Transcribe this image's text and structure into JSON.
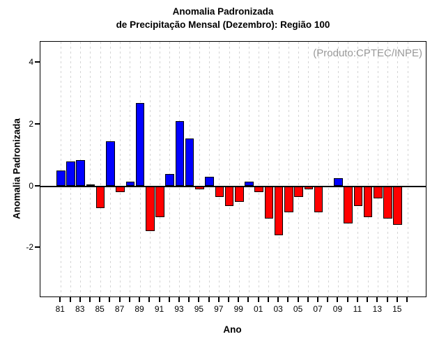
{
  "title": {
    "line1": "Anomalia Padronizada",
    "line2": "de Precipitação Mensal (Dezembro): Região 100"
  },
  "annotation": "(Produto:CPTEC/INPE)",
  "axes": {
    "x_label": "Ano",
    "y_label": "Anomalia Padronizada"
  },
  "colors": {
    "positive_bar": "#0000ff",
    "negative_bar": "#ff0000",
    "bar_border": "#000000",
    "gridline": "#d4d4d4",
    "annotation_text": "#999999",
    "axis": "#000000"
  },
  "chart_data": {
    "type": "bar",
    "title": "Anomalia Padronizada de Precipitação Mensal (Dezembro): Região 100",
    "xlabel": "Ano",
    "ylabel": "Anomalia Padronizada",
    "x": [
      1981,
      1982,
      1983,
      1984,
      1985,
      1986,
      1987,
      1988,
      1989,
      1990,
      1991,
      1992,
      1993,
      1994,
      1995,
      1996,
      1997,
      1998,
      1999,
      2000,
      2001,
      2002,
      2003,
      2004,
      2005,
      2006,
      2007,
      2008,
      2009,
      2010,
      2011,
      2012,
      2013,
      2014,
      2015
    ],
    "values": [
      0.5,
      0.8,
      0.85,
      0.05,
      -0.7,
      1.45,
      -0.2,
      0.15,
      2.7,
      -1.45,
      -1.0,
      0.4,
      2.1,
      1.55,
      -0.1,
      0.3,
      -0.35,
      -0.65,
      -0.5,
      0.15,
      -0.2,
      -1.05,
      -1.6,
      -0.85,
      -0.35,
      -0.1,
      -0.85,
      0.02,
      0.25,
      -1.2,
      -0.65,
      -1.0,
      -0.4,
      -1.05,
      -1.25
    ],
    "x_tick_labels": [
      "81",
      "83",
      "85",
      "87",
      "89",
      "91",
      "93",
      "95",
      "97",
      "99",
      "01",
      "03",
      "05",
      "07",
      "09",
      "11",
      "13",
      "15"
    ],
    "x_axis_years": [
      1981,
      2016
    ],
    "y_ticks": [
      4,
      2,
      0,
      -2
    ],
    "ylim": [
      -3.55,
      4.65
    ],
    "grid": "vertical-dashed-every-year",
    "legend": "none",
    "bar_color_rule": "blue if value >= 0 else red"
  }
}
